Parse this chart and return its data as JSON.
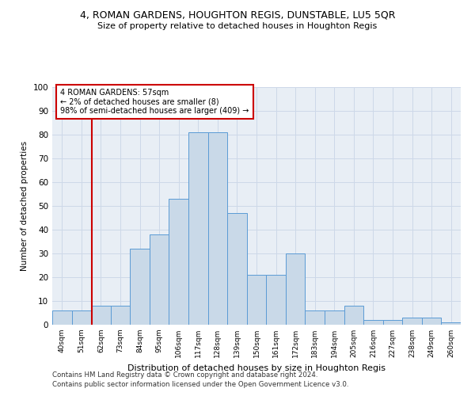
{
  "title1": "4, ROMAN GARDENS, HOUGHTON REGIS, DUNSTABLE, LU5 5QR",
  "title2": "Size of property relative to detached houses in Houghton Regis",
  "xlabel": "Distribution of detached houses by size in Houghton Regis",
  "ylabel": "Number of detached properties",
  "categories": [
    "40sqm",
    "51sqm",
    "62sqm",
    "73sqm",
    "84sqm",
    "95sqm",
    "106sqm",
    "117sqm",
    "128sqm",
    "139sqm",
    "150sqm",
    "161sqm",
    "172sqm",
    "183sqm",
    "194sqm",
    "205sqm",
    "216sqm",
    "227sqm",
    "238sqm",
    "249sqm",
    "260sqm"
  ],
  "values": [
    6,
    6,
    8,
    8,
    32,
    38,
    53,
    81,
    81,
    47,
    21,
    21,
    30,
    6,
    6,
    8,
    2,
    2,
    3,
    3,
    1
  ],
  "bar_color": "#c9d9e8",
  "bar_edge_color": "#5b9bd5",
  "bar_width": 1.0,
  "grid_color": "#cdd8e8",
  "bg_color": "#e8eef5",
  "vline_color": "#cc0000",
  "annotation_text": "4 ROMAN GARDENS: 57sqm\n← 2% of detached houses are smaller (8)\n98% of semi-detached houses are larger (409) →",
  "ylim": [
    0,
    100
  ],
  "yticks": [
    0,
    10,
    20,
    30,
    40,
    50,
    60,
    70,
    80,
    90,
    100
  ],
  "footer1": "Contains HM Land Registry data © Crown copyright and database right 2024.",
  "footer2": "Contains public sector information licensed under the Open Government Licence v3.0."
}
